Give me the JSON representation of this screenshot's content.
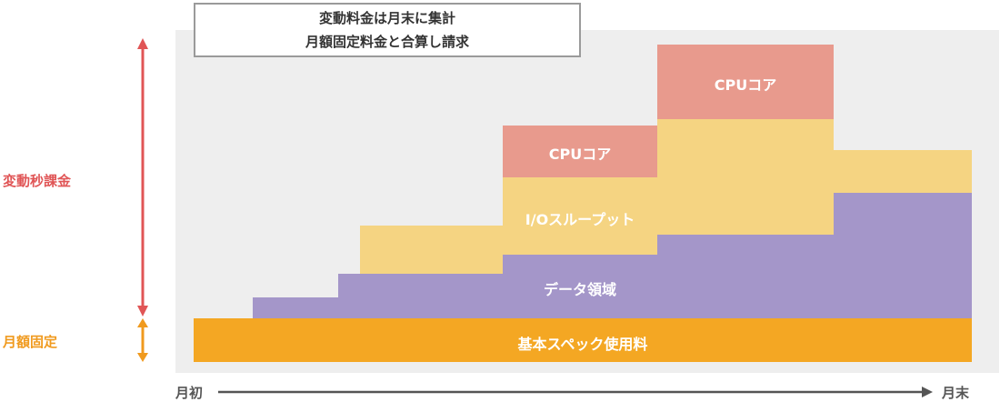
{
  "note": {
    "line1": "変動料金は月末に集計",
    "line2": "月額固定料金と合算し請求"
  },
  "side_labels": {
    "variable": "変動秒課金",
    "fixed": "月額固定"
  },
  "blocks": {
    "fixed": "基本スペック使用料",
    "data": "データ領域",
    "io": "I/Oスループット",
    "cpu_1": "CPUコア",
    "cpu_2": "CPUコア"
  },
  "axis": {
    "start": "月初",
    "end": "月末"
  },
  "colors": {
    "fixed": "#f4a723",
    "data": "#a496c9",
    "io": "#f5d482",
    "cpu": "#e89a8d",
    "variable_arrow": "#e05556",
    "fixed_arrow": "#f09a1e"
  }
}
